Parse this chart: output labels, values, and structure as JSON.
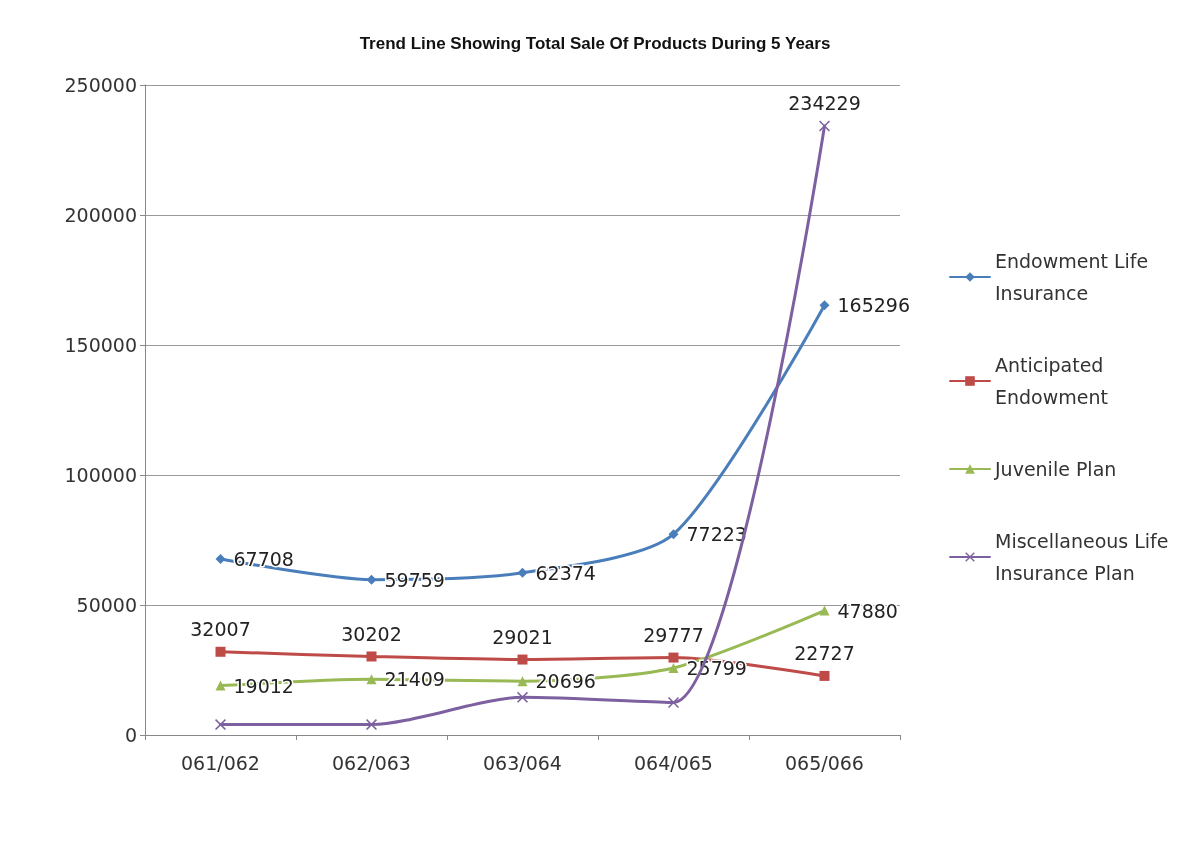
{
  "chart_data": {
    "type": "line",
    "title": "Trend Line Showing Total Sale Of Products During 5 Years",
    "categories": [
      "061/062",
      "062/063",
      "063/064",
      "064/065",
      "065/066"
    ],
    "series": [
      {
        "name": "Endowment Life Insurance",
        "color": "#4a7ebb",
        "marker": "diamond",
        "values": [
          67708,
          59759,
          62374,
          77223,
          165296
        ],
        "value_labels": [
          "67708",
          "59759",
          "62374",
          "77223",
          "165296"
        ]
      },
      {
        "name": "Anticipated Endowment",
        "color": "#be4b48",
        "marker": "square",
        "values": [
          32007,
          30202,
          29021,
          29777,
          22727
        ],
        "value_labels": [
          "32007",
          "30202",
          "29021",
          "29777",
          "22727"
        ]
      },
      {
        "name": "Juvenile Plan",
        "color": "#98b954",
        "marker": "triangle",
        "values": [
          19012,
          21409,
          20696,
          25799,
          47880
        ],
        "value_labels": [
          "19012",
          "21409",
          "20696",
          "25799",
          "47880"
        ]
      },
      {
        "name": "Miscellaneous Life Insurance Plan",
        "color": "#7d60a0",
        "marker": "cross",
        "values": [
          4000,
          4000,
          14500,
          12500,
          234229
        ],
        "value_labels": [
          null,
          null,
          null,
          null,
          "234229"
        ]
      }
    ],
    "ylim": [
      0,
      250000
    ],
    "yticks": [
      0,
      50000,
      100000,
      150000,
      200000,
      250000
    ],
    "grid": "y",
    "legend": "right",
    "line_style": "solid"
  }
}
